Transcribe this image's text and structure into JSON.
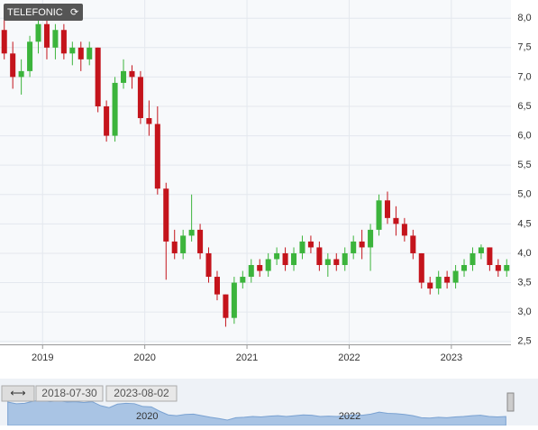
{
  "header": {
    "symbol": "TELEFONIC"
  },
  "chart_data": {
    "type": "candlestick",
    "categories": [
      null,
      null,
      null,
      null,
      null,
      "2019",
      null,
      null,
      null,
      null,
      null,
      null,
      null,
      null,
      null,
      null,
      null,
      "2020",
      null,
      null,
      null,
      null,
      null,
      null,
      null,
      null,
      null,
      null,
      null,
      "2021",
      null,
      null,
      null,
      null,
      null,
      null,
      null,
      null,
      null,
      null,
      null,
      "2022",
      null,
      null,
      null,
      null,
      null,
      null,
      null,
      null,
      null,
      null,
      null,
      "2023",
      null,
      null,
      null,
      null,
      null,
      null
    ],
    "open": [
      7.8,
      7.4,
      7.0,
      7.1,
      7.6,
      7.9,
      7.5,
      7.8,
      7.4,
      7.5,
      7.3,
      7.5,
      6.5,
      6.0,
      6.9,
      7.1,
      7.0,
      6.3,
      6.2,
      5.1,
      4.2,
      4.0,
      4.3,
      4.4,
      4.0,
      3.6,
      3.3,
      2.9,
      3.5,
      3.6,
      3.8,
      3.7,
      3.9,
      4.0,
      3.8,
      4.0,
      4.2,
      4.1,
      3.8,
      3.9,
      3.8,
      4.0,
      4.2,
      4.1,
      4.4,
      4.9,
      4.6,
      4.5,
      4.3,
      4.0,
      3.5,
      3.4,
      3.6,
      3.5,
      3.7,
      3.8,
      4.0,
      4.1,
      3.8,
      3.7
    ],
    "high": [
      8.0,
      7.6,
      7.3,
      7.7,
      8.1,
      8.0,
      7.9,
      7.9,
      7.6,
      7.6,
      7.6,
      7.5,
      6.6,
      7.0,
      7.3,
      7.2,
      7.1,
      6.6,
      6.5,
      5.2,
      4.4,
      4.4,
      5.0,
      4.5,
      4.1,
      3.7,
      3.3,
      3.6,
      3.7,
      3.9,
      3.9,
      4.0,
      4.1,
      4.1,
      4.1,
      4.3,
      4.3,
      4.2,
      4.0,
      4.0,
      4.1,
      4.3,
      4.4,
      4.5,
      5.0,
      5.05,
      4.8,
      4.6,
      4.4,
      4.0,
      3.6,
      3.7,
      3.7,
      3.8,
      3.9,
      4.1,
      4.15,
      4.1,
      3.9,
      3.9
    ],
    "low": [
      7.3,
      6.8,
      6.7,
      7.0,
      7.4,
      7.3,
      7.3,
      7.3,
      7.2,
      7.1,
      7.2,
      6.4,
      5.9,
      5.9,
      6.8,
      6.8,
      6.2,
      6.0,
      5.0,
      3.55,
      3.9,
      3.9,
      4.2,
      3.9,
      3.5,
      3.2,
      2.75,
      2.8,
      3.4,
      3.5,
      3.6,
      3.6,
      3.8,
      3.7,
      3.7,
      3.9,
      4.0,
      3.7,
      3.6,
      3.7,
      3.7,
      3.9,
      3.9,
      3.7,
      4.3,
      4.5,
      4.3,
      4.2,
      3.9,
      3.4,
      3.3,
      3.3,
      3.4,
      3.4,
      3.6,
      3.7,
      3.9,
      3.7,
      3.6,
      3.6
    ],
    "close": [
      7.4,
      7.0,
      7.1,
      7.6,
      7.9,
      7.5,
      7.8,
      7.4,
      7.5,
      7.3,
      7.5,
      6.5,
      6.0,
      6.9,
      7.1,
      7.0,
      6.3,
      6.2,
      5.1,
      4.2,
      4.0,
      4.3,
      4.4,
      4.0,
      3.6,
      3.3,
      2.9,
      3.5,
      3.6,
      3.8,
      3.7,
      3.9,
      4.0,
      3.8,
      4.0,
      4.2,
      4.1,
      3.8,
      3.9,
      3.8,
      4.0,
      4.2,
      4.1,
      4.4,
      4.9,
      4.6,
      4.5,
      4.3,
      4.0,
      3.5,
      3.4,
      3.6,
      3.5,
      3.7,
      3.8,
      4.0,
      4.1,
      3.8,
      3.7,
      3.8
    ],
    "up_color": "#3cb43c",
    "down_color": "#c4141c",
    "ylim": [
      2.45,
      8.31
    ],
    "yticks": [
      {
        "value": 2.5,
        "label": "2,5"
      },
      {
        "value": 3,
        "label": "3,0"
      },
      {
        "value": 3.5,
        "label": "3,5"
      },
      {
        "value": 4,
        "label": "4,0"
      },
      {
        "value": 4.5,
        "label": "4,5"
      },
      {
        "value": 5,
        "label": "5,0"
      },
      {
        "value": 5.5,
        "label": "5,5"
      },
      {
        "value": 6,
        "label": "6,0"
      },
      {
        "value": 6.5,
        "label": "6,5"
      },
      {
        "value": 7,
        "label": "7,0"
      },
      {
        "value": 7.5,
        "label": "7,5"
      },
      {
        "value": 8,
        "label": "8,0"
      }
    ],
    "grid": true
  },
  "navigator": {
    "from": "2018-07-30",
    "to": "2023-08-02",
    "labels": [
      "2020",
      "2022"
    ]
  }
}
